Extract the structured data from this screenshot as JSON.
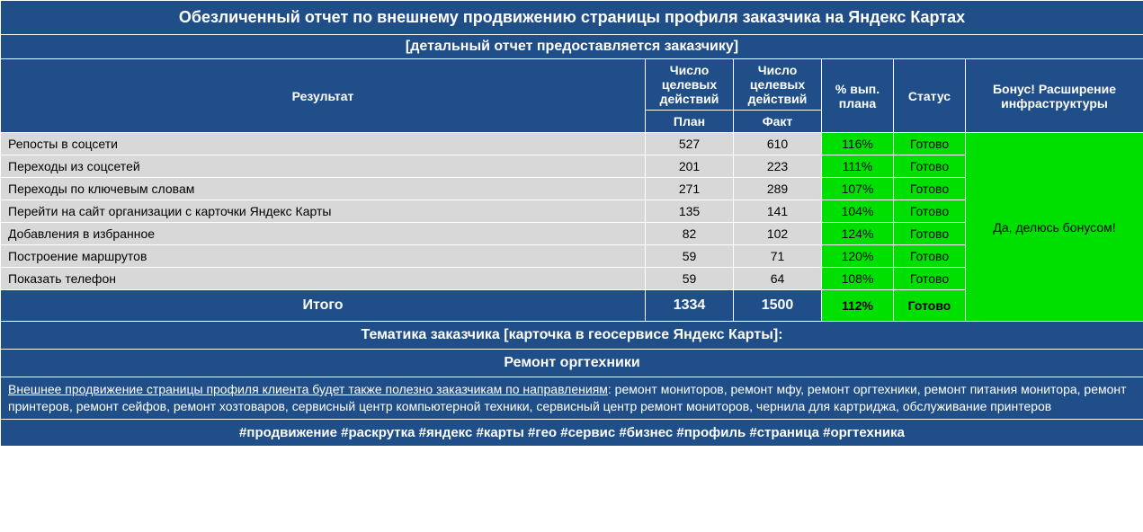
{
  "title": "Обезличенный отчет по внешнему продвижению страницы профиля заказчика на Яндекс Картах",
  "subtitle": "[детальный отчет предоставляется заказчику]",
  "headers": {
    "result": "Результат",
    "plan_top": "Число целевых действий",
    "fact_top": "Число целевых действий",
    "plan_sub": "План",
    "fact_sub": "Факт",
    "pct": "% вып. плана",
    "status": "Статус",
    "bonus": "Бонус! Расширение инфраструктуры"
  },
  "rows": [
    {
      "label": "Репосты в соцсети",
      "plan": "527",
      "fact": "610",
      "pct": "116%",
      "status": "Готово"
    },
    {
      "label": "Переходы из соцсетей",
      "plan": "201",
      "fact": "223",
      "pct": "111%",
      "status": "Готово"
    },
    {
      "label": "Переходы по ключевым словам",
      "plan": "271",
      "fact": "289",
      "pct": "107%",
      "status": "Готово"
    },
    {
      "label": "Перейти на сайт организации с карточки Яндекс Карты",
      "plan": "135",
      "fact": "141",
      "pct": "104%",
      "status": "Готово"
    },
    {
      "label": "Добавления в избранное",
      "plan": "82",
      "fact": "102",
      "pct": "124%",
      "status": "Готово"
    },
    {
      "label": "Построение маршрутов",
      "plan": "59",
      "fact": "71",
      "pct": "120%",
      "status": "Готово"
    },
    {
      "label": "Показать телефон",
      "plan": "59",
      "fact": "64",
      "pct": "108%",
      "status": "Готово"
    }
  ],
  "bonus_text": "Да, делюсь бонусом!",
  "total": {
    "label": "Итого",
    "plan": "1334",
    "fact": "1500",
    "pct": "112%",
    "status": "Готово"
  },
  "theme_header": "Тематика заказчика [карточка в геосервисе Яндекс Карты]:",
  "theme_value": "Ремонт оргтехники",
  "promo_lead": "Внешнее продвижение страницы профиля клиента будет также полезно заказчикам по направлениям",
  "promo_rest": ": ремонт мониторов, ремонт мфу, ремонт оргтехники, ремонт питания монитора, ремонт принтеров, ремонт сейфов, ремонт хозтоваров, сервисный центр компьютерной техники, сервисный центр ремонт мониторов, чернила для картриджа, обслуживание принтеров",
  "hashtags": "#продвижение #раскрутка #яндекс #карты #гео #сервис #бизнес #профиль #страница #оргтехника",
  "colors": {
    "blue": "#1f4e89",
    "gray": "#d8d8d8",
    "green": "#00e000",
    "white": "#ffffff",
    "black": "#000000"
  }
}
